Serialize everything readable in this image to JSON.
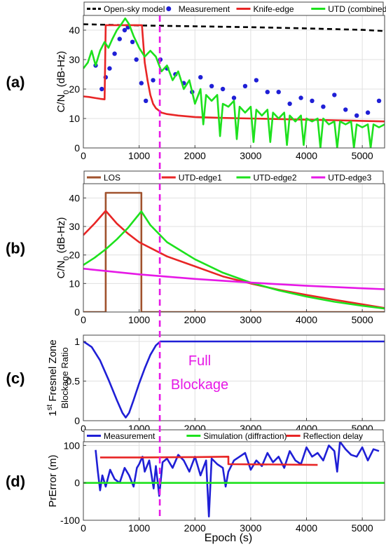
{
  "figure": {
    "xlabel": "Epoch (s)",
    "annotation": [
      "Full",
      "Blockage"
    ],
    "annotation_color": "#e619e6",
    "divider_epoch": 1370
  },
  "chart_data": [
    {
      "panel": "(a)",
      "type": "line",
      "ylabel": "C/N",
      "ylabel_sub": "0",
      "ylabel_tail": " (dB-Hz)",
      "xlim": [
        0,
        5400
      ],
      "ylim": [
        0,
        45
      ],
      "xticks": [
        0,
        1000,
        2000,
        3000,
        4000,
        5000
      ],
      "yticks": [
        0,
        10,
        20,
        30,
        40
      ],
      "grid": true,
      "legend_position": "top",
      "series": [
        {
          "name": "Open-sky model",
          "style": "dashed",
          "color": "#000000",
          "x": [
            0,
            1000,
            2000,
            3000,
            4000,
            5000,
            5400
          ],
          "y": [
            42,
            41.6,
            41.3,
            41.0,
            40.6,
            40.1,
            39.7
          ]
        },
        {
          "name": "Measurement",
          "style": "markers",
          "color": "#1f1fd6",
          "x": [
            220,
            330,
            400,
            470,
            560,
            650,
            740,
            800,
            880,
            950,
            1040,
            1120,
            1250,
            1380,
            1500,
            1650,
            1800,
            1950,
            2100,
            2300,
            2500,
            2700,
            2900,
            3100,
            3300,
            3500,
            3700,
            3900,
            4100,
            4300,
            4500,
            4700,
            4900,
            5100,
            5300
          ],
          "y": [
            28,
            20,
            24,
            27,
            32,
            37,
            40,
            41,
            36,
            30,
            22,
            16,
            23,
            30,
            27,
            25,
            22,
            19,
            24,
            21,
            20,
            17,
            21,
            23,
            19,
            19,
            15,
            17,
            16,
            14,
            18,
            13,
            11,
            12,
            16
          ]
        },
        {
          "name": "Knife-edge",
          "style": "solid",
          "color": "#e82525",
          "x": [
            0,
            100,
            200,
            300,
            380,
            400,
            500,
            600,
            700,
            800,
            900,
            1000,
            1050,
            1100,
            1150,
            1200,
            1250,
            1300,
            1400,
            1500,
            1700,
            2000,
            2500,
            3000,
            3500,
            4000,
            4500,
            5000,
            5400
          ],
          "y": [
            17.5,
            17.3,
            17,
            16.7,
            16.5,
            41.7,
            41.7,
            41.7,
            41.7,
            41.7,
            41.7,
            41.7,
            41.7,
            29,
            23,
            18,
            15,
            13.5,
            12,
            11.5,
            11,
            10.5,
            10.2,
            10,
            9.8,
            9.6,
            9.4,
            9.2,
            9
          ]
        },
        {
          "name": "UTD (combined)",
          "style": "solid",
          "color": "#1de11d",
          "x": [
            0,
            80,
            150,
            220,
            300,
            380,
            450,
            520,
            600,
            680,
            750,
            820,
            900,
            1000,
            1100,
            1200,
            1300,
            1400,
            1500,
            1600,
            1700,
            1800,
            1900,
            2000,
            2100,
            2150,
            2200,
            2300,
            2400,
            2450,
            2500,
            2600,
            2700,
            2750,
            2800,
            2900,
            3000,
            3050,
            3100,
            3200,
            3300,
            3350,
            3400,
            3500,
            3600,
            3650,
            3700,
            3800,
            3900,
            3950,
            4000,
            4100,
            4200,
            4250,
            4300,
            4400,
            4500,
            4550,
            4600,
            4700,
            4800,
            4850,
            4900,
            5000,
            5100,
            5150,
            5200,
            5300,
            5400
          ],
          "y": [
            27,
            29,
            33,
            28,
            33,
            36,
            34,
            37,
            40,
            42,
            44,
            42,
            38,
            34,
            31,
            33,
            31,
            26,
            28,
            23,
            26,
            20,
            23,
            15,
            20,
            8,
            18,
            16,
            18,
            4,
            15,
            14,
            16,
            3,
            14,
            12,
            14,
            2,
            13,
            11,
            13,
            2,
            12,
            10,
            12,
            1,
            11,
            9,
            11,
            1,
            10,
            9,
            10,
            0,
            10,
            8,
            9,
            0,
            9,
            8,
            9,
            0,
            8,
            7,
            8,
            0,
            8,
            7,
            8
          ]
        }
      ]
    },
    {
      "panel": "(b)",
      "type": "line",
      "ylabel": "C/N",
      "ylabel_sub": "0",
      "ylabel_tail": " (dB-Hz)",
      "xlim": [
        0,
        5400
      ],
      "ylim": [
        0,
        45
      ],
      "xticks": [
        0,
        1000,
        2000,
        3000,
        4000,
        5000
      ],
      "yticks": [
        0,
        10,
        20,
        30,
        40
      ],
      "grid": true,
      "legend_position": "top",
      "series": [
        {
          "name": "LOS",
          "style": "solid",
          "color": "#a0522d",
          "x": [
            0,
            400,
            400,
            1040,
            1040,
            5400
          ],
          "y": [
            0,
            0,
            41.8,
            41.8,
            0,
            0
          ]
        },
        {
          "name": "UTD-edge1",
          "style": "solid",
          "color": "#e82525",
          "x": [
            0,
            200,
            400,
            600,
            800,
            1000,
            1500,
            2000,
            2500,
            3000,
            3500,
            4000,
            4500,
            5000,
            5400
          ],
          "y": [
            27,
            31,
            35.5,
            31,
            27.5,
            24.5,
            19.5,
            16,
            12.5,
            10,
            7.8,
            6,
            4.3,
            2.7,
            1.4
          ]
        },
        {
          "name": "UTD-edge2",
          "style": "solid",
          "color": "#1de11d",
          "x": [
            0,
            200,
            400,
            600,
            800,
            1040,
            1200,
            1500,
            2000,
            2500,
            3000,
            3500,
            4000,
            4500,
            5000,
            5400
          ],
          "y": [
            16.5,
            19,
            22,
            25.5,
            29.5,
            35.3,
            30.5,
            24.5,
            18.5,
            13.8,
            10.3,
            7.6,
            5.4,
            3.6,
            2.2,
            1.2
          ]
        },
        {
          "name": "UTD-edge3",
          "style": "solid",
          "color": "#e619e6",
          "x": [
            0,
            1000,
            2000,
            3000,
            4000,
            5000,
            5400
          ],
          "y": [
            15.2,
            13.2,
            11.6,
            10.3,
            9.2,
            8.3,
            8
          ]
        }
      ]
    },
    {
      "panel": "(c)",
      "type": "line",
      "ylabel": "1",
      "ylabel_sup": "st",
      "ylabel_tail": " Fresnel Zone",
      "ylabel2": "Blockage Ratio",
      "xlim": [
        0,
        5400
      ],
      "ylim": [
        0,
        1.08
      ],
      "xticks": [
        0,
        1000,
        2000,
        3000,
        4000,
        5000
      ],
      "yticks": [
        0,
        0.5,
        1
      ],
      "grid": true,
      "series": [
        {
          "name": "",
          "style": "solid",
          "color": "#1f1fd6",
          "x": [
            0,
            150,
            300,
            450,
            600,
            700,
            760,
            820,
            900,
            1000,
            1100,
            1200,
            1300,
            1380,
            5400
          ],
          "y": [
            1,
            0.93,
            0.76,
            0.52,
            0.26,
            0.1,
            0.04,
            0.1,
            0.26,
            0.47,
            0.66,
            0.83,
            0.95,
            1,
            1
          ]
        }
      ]
    },
    {
      "panel": "(d)",
      "type": "line",
      "ylabel": "PrError (m)",
      "xlim": [
        0,
        5400
      ],
      "ylim": [
        -100,
        110
      ],
      "xticks": [
        0,
        1000,
        2000,
        3000,
        4000,
        5000
      ],
      "yticks": [
        -100,
        0,
        100
      ],
      "grid": true,
      "legend_position": "top",
      "series": [
        {
          "name": "Measurement",
          "style": "solid",
          "color": "#1f1fd6",
          "x": [
            220,
            260,
            300,
            340,
            400,
            480,
            560,
            650,
            740,
            820,
            900,
            960,
            1000,
            1060,
            1100,
            1180,
            1260,
            1300,
            1360,
            1420,
            1500,
            1600,
            1700,
            1800,
            1900,
            2000,
            2100,
            2200,
            2250,
            2300,
            2400,
            2500,
            2550,
            2600,
            2700,
            2800,
            2900,
            3000,
            3100,
            3200,
            3300,
            3400,
            3500,
            3600,
            3700,
            3800,
            3900,
            4000,
            4100,
            4200,
            4300,
            4400,
            4500,
            4550,
            4600,
            4700,
            4800,
            4900,
            5000,
            5100,
            5200,
            5300
          ],
          "y": [
            88,
            30,
            -20,
            20,
            -10,
            35,
            10,
            0,
            40,
            20,
            -10,
            40,
            50,
            70,
            30,
            60,
            -15,
            45,
            -35,
            55,
            65,
            40,
            75,
            60,
            30,
            70,
            20,
            60,
            -90,
            65,
            50,
            40,
            -10,
            30,
            60,
            70,
            80,
            35,
            60,
            45,
            80,
            55,
            70,
            40,
            85,
            60,
            50,
            95,
            70,
            80,
            60,
            100,
            85,
            30,
            110,
            90,
            75,
            70,
            95,
            60,
            90,
            85
          ]
        },
        {
          "name": "Simulation (diffraction)",
          "style": "solid",
          "color": "#1de11d",
          "x": [
            0,
            1000,
            2000,
            3000,
            4000,
            5000,
            5400
          ],
          "y": [
            0,
            0,
            0,
            0,
            0,
            0,
            0
          ]
        },
        {
          "name": "Reflection delay",
          "style": "solid",
          "color": "#e82525",
          "x": [
            300,
            1000,
            2000,
            2600,
            2600,
            3500,
            4200
          ],
          "y": [
            68,
            68,
            69,
            70,
            50,
            49,
            48
          ]
        }
      ]
    }
  ]
}
